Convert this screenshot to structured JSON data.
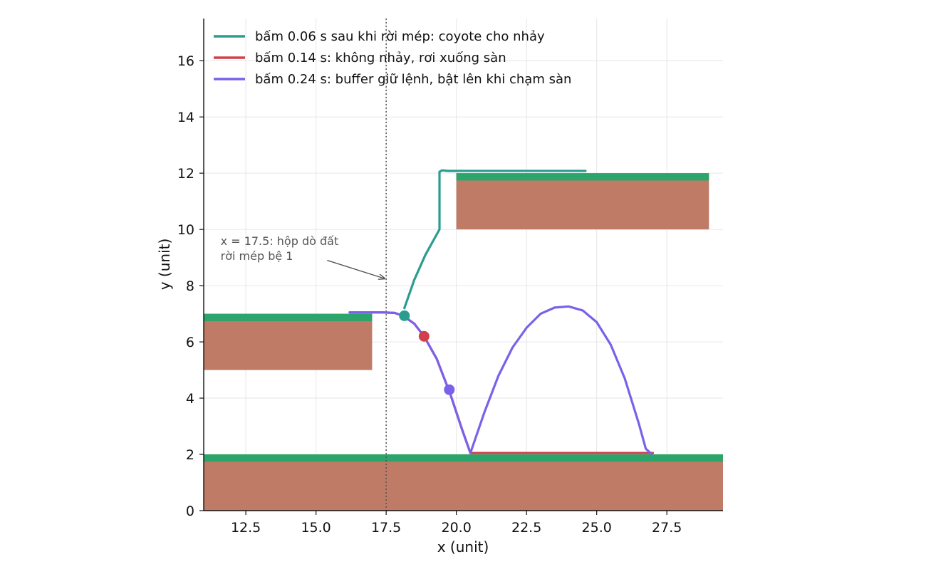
{
  "chart_data": {
    "type": "line",
    "title": "",
    "xlabel": "x (unit)",
    "ylabel": "y (unit)",
    "xlim": [
      11.0,
      29.5
    ],
    "ylim": [
      0,
      17.5
    ],
    "xticks": [
      "12.5",
      "15.0",
      "17.5",
      "20.0",
      "22.5",
      "25.0",
      "27.5"
    ],
    "yticks": [
      "0",
      "2",
      "4",
      "6",
      "8",
      "10",
      "12",
      "14",
      "16"
    ],
    "grid": true,
    "legend_position": "top-left",
    "colors": {
      "coyote": "#2a9d8f",
      "fall": "#d1404a",
      "buffer": "#7b61e8",
      "grass": "#2ba56b",
      "dirt": "#bf7b66",
      "marker_line": "#555555"
    },
    "platforms": [
      {
        "name": "platform-1",
        "x": [
          11.0,
          17.0
        ],
        "y_top": 7.0,
        "y_bottom": 5.0
      },
      {
        "name": "platform-2",
        "x": [
          20.0,
          29.0
        ],
        "y_top": 12.0,
        "y_bottom": 10.0
      },
      {
        "name": "floor",
        "x": [
          11.0,
          29.5
        ],
        "y_top": 2.0,
        "y_bottom": 0.0
      }
    ],
    "series": [
      {
        "key": "coyote",
        "name": "bấm 0.06 s sau khi rời mép: coyote cho nhảy",
        "points": [
          [
            18.15,
            7.2
          ],
          [
            18.5,
            8.2
          ],
          [
            18.9,
            9.1
          ],
          [
            19.4,
            10.0
          ],
          [
            19.4,
            12.05
          ],
          [
            19.5,
            12.1
          ],
          [
            19.7,
            12.08
          ],
          [
            24.6,
            12.08
          ]
        ]
      },
      {
        "key": "fall",
        "name": "bấm 0.14 s: không nhảy, rơi xuống sàn",
        "points": [
          [
            16.2,
            7.05
          ],
          [
            17.3,
            7.05
          ],
          [
            17.8,
            7.03
          ],
          [
            18.1,
            6.93
          ],
          [
            18.5,
            6.65
          ],
          [
            18.85,
            6.2
          ],
          [
            19.3,
            5.4
          ],
          [
            19.8,
            4.1
          ],
          [
            20.2,
            2.9
          ],
          [
            20.5,
            2.05
          ],
          [
            27.0,
            2.05
          ]
        ]
      },
      {
        "key": "buffer",
        "name": "bấm 0.24 s: buffer giữ lệnh, bật lên khi chạm sàn",
        "points": [
          [
            16.2,
            7.05
          ],
          [
            17.3,
            7.05
          ],
          [
            17.8,
            7.03
          ],
          [
            18.1,
            6.93
          ],
          [
            18.5,
            6.65
          ],
          [
            18.85,
            6.2
          ],
          [
            19.3,
            5.4
          ],
          [
            19.8,
            4.1
          ],
          [
            20.2,
            2.9
          ],
          [
            20.5,
            2.05
          ],
          [
            21.0,
            3.5
          ],
          [
            21.5,
            4.8
          ],
          [
            22.0,
            5.8
          ],
          [
            22.5,
            6.5
          ],
          [
            23.0,
            7.0
          ],
          [
            23.5,
            7.22
          ],
          [
            24.0,
            7.26
          ],
          [
            24.5,
            7.12
          ],
          [
            25.0,
            6.7
          ],
          [
            25.5,
            5.9
          ],
          [
            26.0,
            4.7
          ],
          [
            26.5,
            3.1
          ],
          [
            26.75,
            2.2
          ],
          [
            26.95,
            2.02
          ]
        ]
      }
    ],
    "markers": [
      {
        "series": "coyote",
        "x": 18.15,
        "y": 6.93
      },
      {
        "series": "fall",
        "x": 18.85,
        "y": 6.2
      },
      {
        "series": "buffer",
        "x": 19.75,
        "y": 4.3
      }
    ],
    "vline": {
      "x": 17.5
    },
    "annotation": {
      "lines": [
        "x = 17.5: hộp dò đất",
        "rời mép bệ 1"
      ],
      "text_at": [
        11.6,
        9.45
      ],
      "arrow_from": [
        15.4,
        8.9
      ],
      "arrow_to": [
        17.5,
        8.25
      ]
    }
  }
}
